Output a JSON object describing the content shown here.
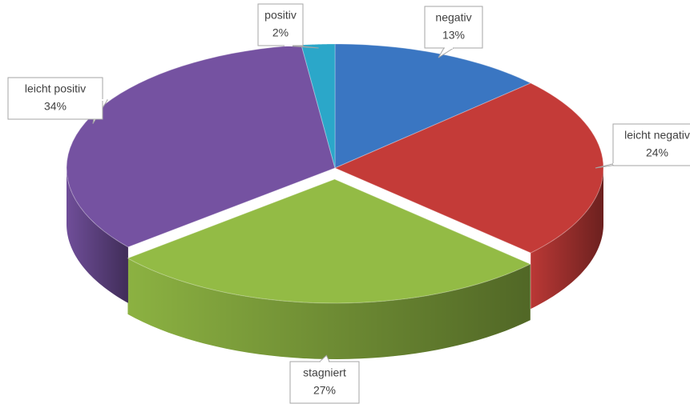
{
  "chart_data": {
    "type": "pie",
    "categories": [
      "negativ",
      "leicht negativ",
      "stagniert",
      "leicht positiv",
      "positiv"
    ],
    "values": [
      13,
      24,
      27,
      34,
      2
    ],
    "value_labels": [
      "13%",
      "24%",
      "27%",
      "34%",
      "2%"
    ],
    "colors": [
      "#3a76c2",
      "#c43b38",
      "#93bb45",
      "#7552a1",
      "#2ba7c9"
    ],
    "three_d": true
  }
}
